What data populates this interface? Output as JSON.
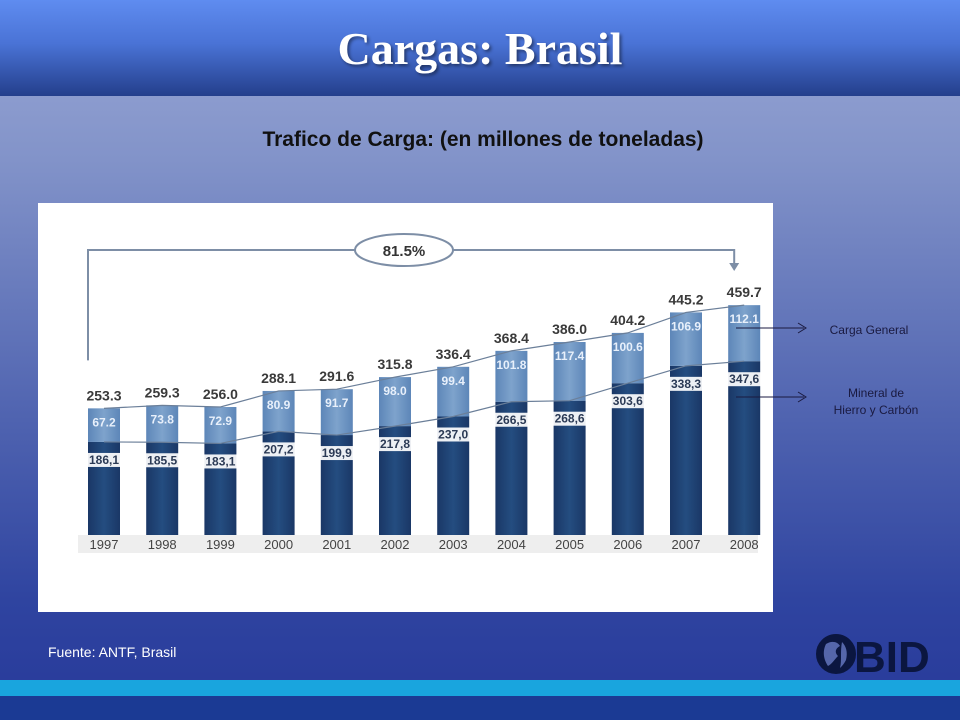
{
  "slide": {
    "title": "Cargas: Brasil",
    "subtitle": "Trafico de Carga: (en millones de toneladas)",
    "source": "Fuente: ANTF, Brasil",
    "logo_text": "BID"
  },
  "colors": {
    "header_top": "#5f8cf0",
    "mineral_bar": "#244d80",
    "general_bar": "#7ea3cc",
    "stripe_light": "#19a5de",
    "stripe_dark": "#1b3a94"
  },
  "chart_data": {
    "type": "bar",
    "stacked": true,
    "categories": [
      "1997",
      "1998",
      "1999",
      "2000",
      "2001",
      "2002",
      "2003",
      "2004",
      "2005",
      "2006",
      "2007",
      "2008"
    ],
    "series": [
      {
        "name": "Mineral de Hierro y Carbón",
        "values": [
          186.1,
          185.5,
          183.1,
          207.2,
          199.9,
          217.8,
          237.0,
          266.5,
          268.6,
          303.6,
          338.3,
          347.6
        ],
        "labels": [
          "186,1",
          "185,5",
          "183,1",
          "207,2",
          "199,9",
          "217,8",
          "237,0",
          "266,5",
          "268,6",
          "303,6",
          "338,3",
          "347,6"
        ]
      },
      {
        "name": "Carga General",
        "values": [
          67.2,
          73.8,
          72.9,
          80.9,
          91.7,
          98.0,
          99.4,
          101.8,
          117.4,
          100.6,
          106.9,
          112.1
        ],
        "labels": [
          "67.2",
          "73.8",
          "72.9",
          "80.9",
          "91.7",
          "98.0",
          "99.4",
          "101.8",
          "117.4",
          "100.6",
          "106.9",
          "112.1"
        ]
      }
    ],
    "totals": [
      253.3,
      259.3,
      256.0,
      288.1,
      291.6,
      315.8,
      336.4,
      368.4,
      386.0,
      404.2,
      445.2,
      459.7
    ],
    "total_labels": [
      "253.3",
      "259.3",
      "256.0",
      "288.1",
      "291.6",
      "315.8",
      "336.4",
      "368.4",
      "386.0",
      "404.2",
      "445.2",
      "459.7"
    ],
    "growth_annotation": "81.5%",
    "ylim": [
      0,
      460
    ]
  }
}
